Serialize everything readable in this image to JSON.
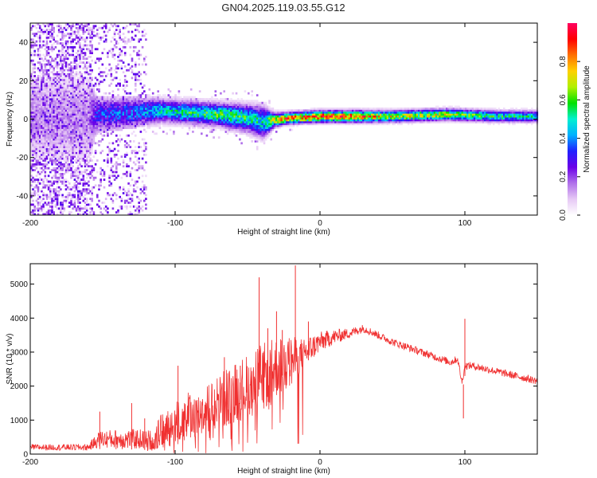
{
  "figure_title": "GN04.2025.119.03.55.G12",
  "chart_data": [
    {
      "type": "heatmap",
      "title": "GN04.2025.119.03.55.G12",
      "xlabel": "Height of straight line (km)",
      "ylabel": "Frequency (Hz)",
      "xlim": [
        -200,
        150
      ],
      "ylim": [
        -50,
        50
      ],
      "xticks": [
        -200,
        -100,
        0,
        100
      ],
      "yticks": [
        -40,
        -20,
        0,
        20,
        40
      ],
      "grid": false,
      "colorbar": {
        "label": "Normalized spectral amplitude",
        "range": [
          0,
          1
        ],
        "ticks": [
          0,
          0.2,
          0.4,
          0.6,
          0.8
        ],
        "tick_labels": [
          "0.0",
          "0.2",
          "0.4",
          "0.6",
          "0.8"
        ],
        "colors": [
          "#ffffff",
          "#e6c8f5",
          "#b070ea",
          "#6a00e8",
          "#2020ff",
          "#00b0ff",
          "#00f0d0",
          "#00e000",
          "#b0f000",
          "#ffd000",
          "#ff7000",
          "#ff0000",
          "#ff0060"
        ]
      },
      "profile": {
        "x": [
          -200,
          -160,
          -155,
          -130,
          -110,
          -90,
          -70,
          -50,
          -40,
          -32,
          -25,
          0,
          20,
          50,
          90,
          120,
          150
        ],
        "center_hz": [
          0,
          0,
          2,
          3,
          4,
          3,
          2,
          0,
          -2,
          -1,
          0,
          1,
          1,
          1,
          2,
          1,
          1
        ],
        "width_hz": [
          20,
          20,
          8,
          7,
          5,
          5,
          5,
          6,
          7,
          3,
          2.5,
          2.5,
          2.5,
          2.5,
          2.5,
          2.5,
          2.5
        ],
        "peak_amplitude": [
          0.15,
          0.15,
          0.35,
          0.4,
          0.5,
          0.55,
          0.6,
          0.55,
          0.5,
          0.75,
          0.85,
          0.9,
          0.9,
          0.7,
          0.7,
          0.55,
          0.5
        ]
      }
    },
    {
      "type": "line",
      "xlabel": "Height of straight line (km)",
      "ylabel": "SNR (10 * v/v)",
      "xlim": [
        -200,
        150
      ],
      "ylim": [
        0,
        5600
      ],
      "xticks": [
        -200,
        -100,
        0,
        100
      ],
      "yticks": [
        0,
        1000,
        2000,
        3000,
        4000,
        5000
      ],
      "grid": false,
      "line_color": "#f03030",
      "series": [
        {
          "x": [
            -200,
            -180,
            -160,
            -152,
            -140,
            -125,
            -115,
            -110,
            -100,
            -90,
            -80,
            -70,
            -60,
            -50,
            -40,
            -30,
            -20,
            -15,
            -10,
            0,
            10,
            20,
            30,
            40,
            50,
            60,
            70,
            80,
            90,
            95,
            98,
            100,
            105,
            120,
            135,
            150
          ],
          "values": [
            200,
            200,
            200,
            450,
            430,
            440,
            400,
            650,
            900,
            1150,
            1250,
            1500,
            1800,
            2000,
            2250,
            2550,
            2700,
            2850,
            3000,
            3300,
            3450,
            3550,
            3700,
            3500,
            3300,
            3150,
            3000,
            2850,
            2700,
            2800,
            2100,
            2600,
            2600,
            2450,
            2300,
            2150
          ],
          "noise_amplitude": [
            90,
            90,
            100,
            250,
            300,
            300,
            300,
            500,
            650,
            700,
            750,
            850,
            900,
            950,
            1000,
            900,
            800,
            550,
            450,
            300,
            220,
            150,
            120,
            110,
            110,
            110,
            110,
            110,
            110,
            110,
            110,
            110,
            110,
            110,
            110,
            110
          ]
        }
      ],
      "spikes": [
        {
          "x": -152,
          "y": 1250
        },
        {
          "x": -130,
          "y": 1500
        },
        {
          "x": -121,
          "y": 1050
        },
        {
          "x": -98,
          "y": 2600
        },
        {
          "x": -66,
          "y": 2850
        },
        {
          "x": -55,
          "y": 2600
        },
        {
          "x": -42,
          "y": 5200
        },
        {
          "x": -36,
          "y": 3700
        },
        {
          "x": -30,
          "y": 4200
        },
        {
          "x": -26,
          "y": 3650
        },
        {
          "x": -17,
          "y": 5550
        },
        {
          "x": -8,
          "y": 3900
        },
        {
          "x": 99,
          "y": 1050
        },
        {
          "x": 100,
          "y": 3980
        }
      ]
    }
  ]
}
